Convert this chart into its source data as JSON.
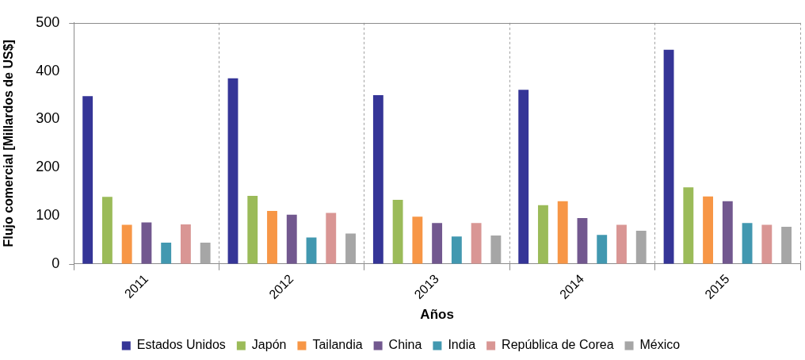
{
  "chart_data": {
    "type": "bar",
    "xlabel": "Años",
    "ylabel": "Flujo comercial [Millardos de US$]",
    "categories": [
      "2011",
      "2012",
      "2013",
      "2014",
      "2015"
    ],
    "series": [
      {
        "name": "Estados Unidos",
        "color": "#353597",
        "values": [
          348,
          385,
          350,
          361,
          444
        ]
      },
      {
        "name": "Japón",
        "color": "#9bbb59",
        "values": [
          139,
          141,
          133,
          122,
          159
        ]
      },
      {
        "name": "Tailandia",
        "color": "#f79646",
        "values": [
          81,
          110,
          98,
          130,
          140
        ]
      },
      {
        "name": "China",
        "color": "#72588f",
        "values": [
          86,
          102,
          85,
          95,
          130
        ]
      },
      {
        "name": "India",
        "color": "#4298b0",
        "values": [
          44,
          55,
          57,
          60,
          85
        ]
      },
      {
        "name": "República de Corea",
        "color": "#d99694",
        "values": [
          82,
          106,
          85,
          81,
          81
        ]
      },
      {
        "name": "México",
        "color": "#a6a6a6",
        "values": [
          44,
          63,
          59,
          69,
          77
        ]
      }
    ],
    "ylim": [
      0,
      500
    ],
    "yticks": [
      0,
      100,
      200,
      300,
      400,
      500
    ],
    "grid": "x",
    "legend": "bottom"
  }
}
